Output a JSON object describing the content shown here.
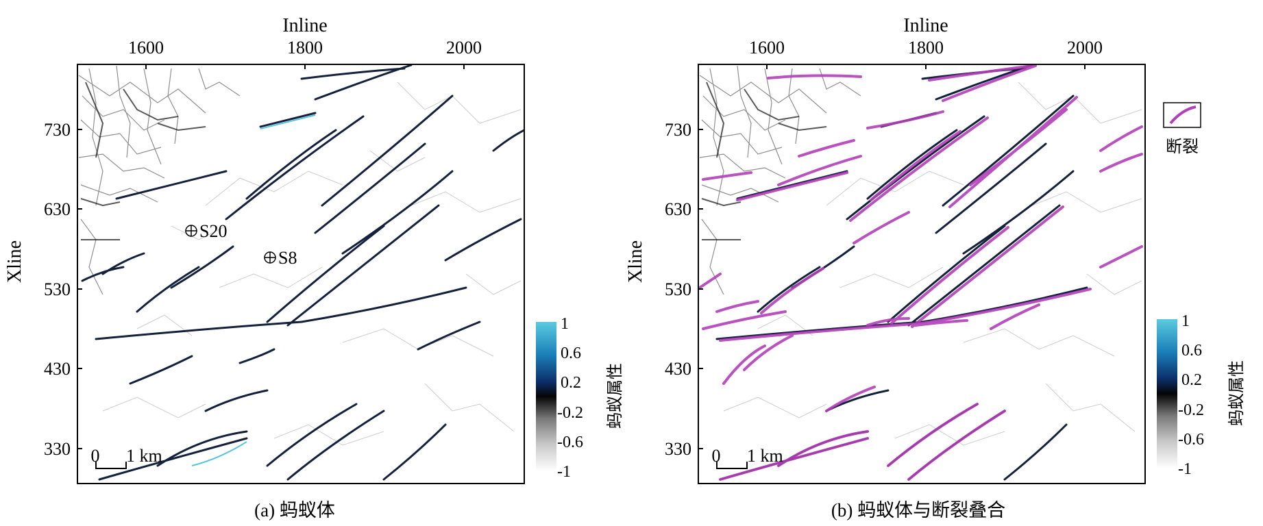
{
  "panels": [
    {
      "caption": "(a) 蚂蚁体",
      "x_axis_title": "Inline",
      "y_axis_title": "Xline",
      "x_ticks": [
        "1600",
        "1800",
        "2000"
      ],
      "y_ticks": [
        "730",
        "630",
        "530",
        "430",
        "330"
      ],
      "wells": [
        "S20",
        "S8"
      ],
      "scale_bar": {
        "start": "0",
        "end": "1 km"
      },
      "colorbar": {
        "title": "蚂蚁属性",
        "ticks": [
          "1",
          "0.6",
          "0.2",
          "-0.2",
          "-0.6",
          "-1"
        ]
      }
    },
    {
      "caption": "(b) 蚂蚁体与断裂叠合",
      "x_axis_title": "Inline",
      "y_axis_title": "Xline",
      "x_ticks": [
        "1600",
        "1800",
        "2000"
      ],
      "y_ticks": [
        "730",
        "630",
        "530",
        "430",
        "330"
      ],
      "scale_bar": {
        "start": "0",
        "end": "1 km"
      },
      "legend_label": "断裂",
      "colorbar": {
        "title": "蚂蚁属性",
        "ticks": [
          "1",
          "0.6",
          "0.2",
          "-0.2",
          "-0.6",
          "-1"
        ]
      }
    }
  ],
  "colors": {
    "fault": "#b23fb8",
    "ant_strong": "#14213d",
    "ant_highlight": "#2fb5d8",
    "background": "#ffffff"
  }
}
